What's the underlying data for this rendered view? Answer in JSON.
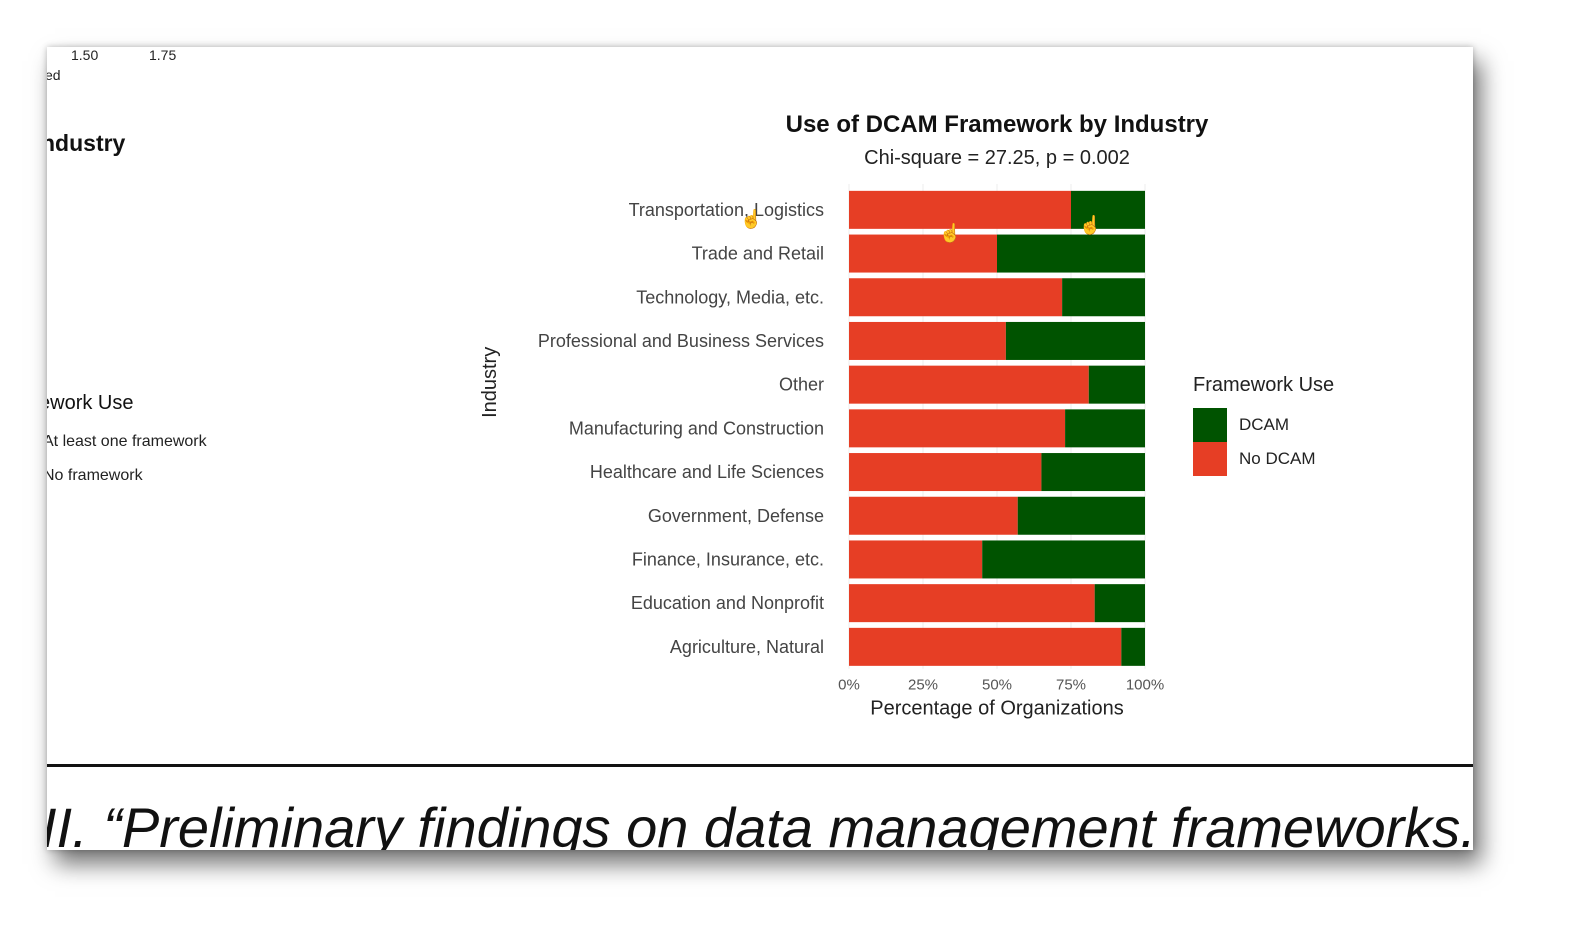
{
  "top_ticks": [
    "1.50",
    "1.75"
  ],
  "top_partial_label": "ed",
  "left_panel": {
    "title": "ndustry",
    "legend_title": "ework Use",
    "legend_items": [
      "At least one framework",
      "No framework"
    ]
  },
  "caption": "II. “Preliminary findings on data management frameworks.”",
  "colors": {
    "dcam": "#005300",
    "no_dcam": "#e63e25",
    "grid": "#ececec"
  },
  "icons": [
    "hand-pointer-icon"
  ],
  "chart_data": {
    "type": "bar",
    "orientation": "horizontal",
    "stacked": "percent",
    "title": "Use of DCAM Framework by Industry",
    "subtitle": "Chi-square = 27.25, p = 0.002",
    "xlabel": "Percentage of Organizations",
    "ylabel": "Industry",
    "xlim": [
      0,
      100
    ],
    "xticks": [
      "0%",
      "25%",
      "50%",
      "75%",
      "100%"
    ],
    "categories": [
      "Transportation, Logistics",
      "Trade and Retail",
      "Technology, Media, etc.",
      "Professional and Business Services",
      "Other",
      "Manufacturing and Construction",
      "Healthcare and Life Sciences",
      "Government, Defense",
      "Finance, Insurance, etc.",
      "Education and Nonprofit",
      "Agriculture, Natural"
    ],
    "series": [
      {
        "name": "No DCAM",
        "values": [
          75,
          50,
          72,
          53,
          81,
          73,
          65,
          57,
          45,
          83,
          92
        ]
      },
      {
        "name": "DCAM",
        "values": [
          25,
          50,
          28,
          47,
          19,
          27,
          35,
          43,
          55,
          17,
          8
        ]
      }
    ],
    "legend": {
      "title": "Framework Use",
      "position": "right",
      "entries": [
        "DCAM",
        "No DCAM"
      ]
    },
    "grid": true
  }
}
